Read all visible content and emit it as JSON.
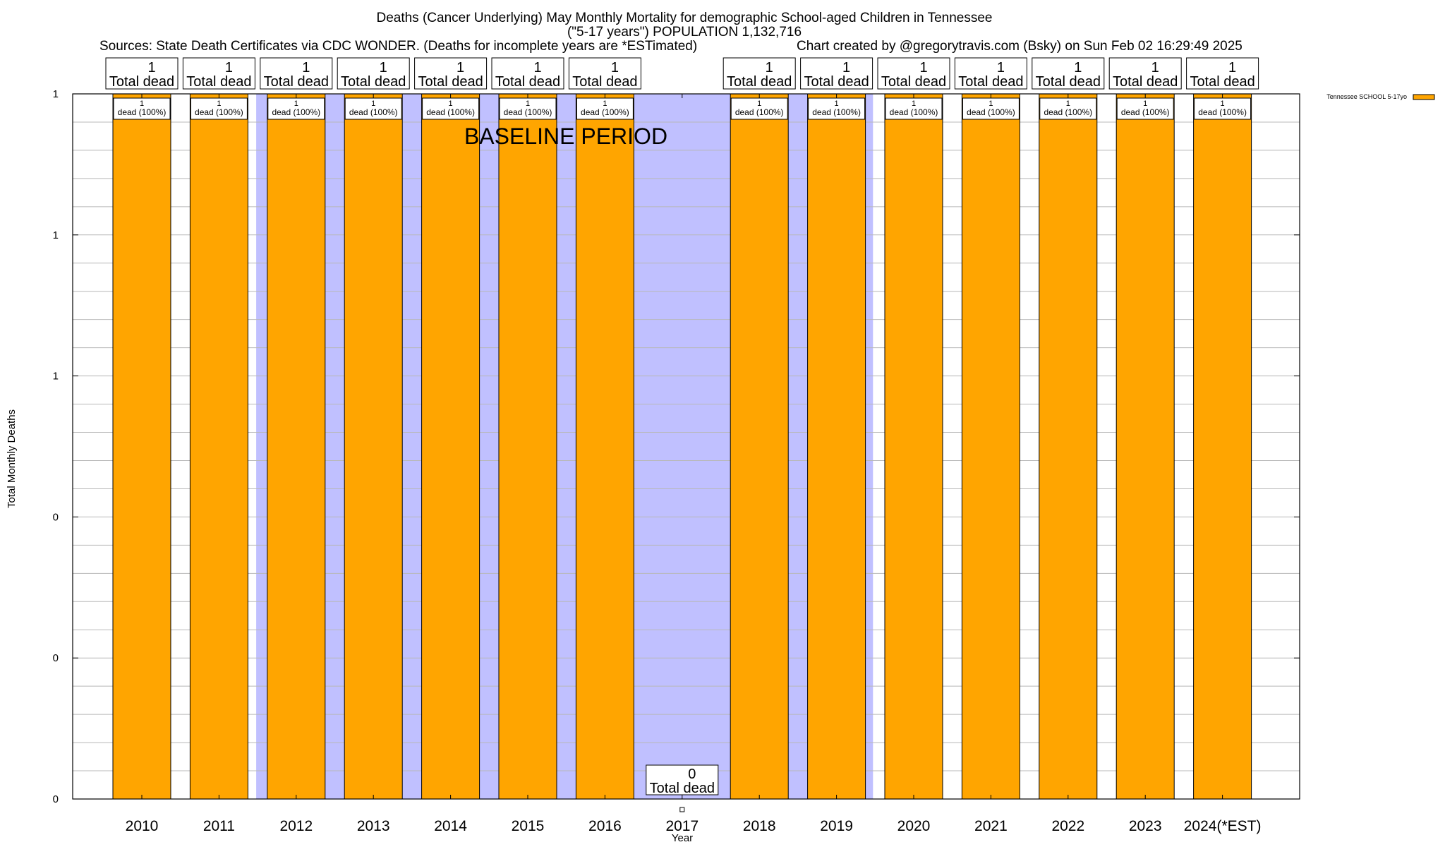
{
  "chart_data": {
    "type": "bar",
    "title_lines": [
      "Deaths (Cancer Underlying) May Monthly Mortality for demographic School-aged Children in Tennessee",
      "(\"5-17 years\") POPULATION 1,132,716"
    ],
    "sources": "Sources: State Death Certificates via CDC WONDER. (Deaths for incomplete years are *ESTimated)",
    "credit": "Chart created by @gregorytravis.com (Bsky) on Sun Feb 02 16:29:49 2025",
    "xlabel": "Year",
    "ylabel": "Total Monthly Deaths",
    "ylim": [
      0,
      1
    ],
    "ytick_values": [
      0,
      0.2,
      0.4,
      0.6,
      0.8,
      1
    ],
    "ytick_labels": [
      "0",
      "0",
      "0",
      "1",
      "1",
      "1"
    ],
    "grid": true,
    "legend_position": "top-right",
    "categories": [
      "2010",
      "2011",
      "2012",
      "2013",
      "2014",
      "2015",
      "2016",
      "2017",
      "2018",
      "2019",
      "2020",
      "2021",
      "2022",
      "2023",
      "2024(*EST)"
    ],
    "series": [
      {
        "name": "Tennessee SCHOOL 5-17yo",
        "color": "#ffa500",
        "values": [
          1,
          1,
          1,
          1,
          1,
          1,
          1,
          0,
          1,
          1,
          1,
          1,
          1,
          1,
          1
        ]
      }
    ],
    "total_labels": [
      "1",
      "1",
      "1",
      "1",
      "1",
      "1",
      "1",
      "0",
      "1",
      "1",
      "1",
      "1",
      "1",
      "1",
      "1"
    ],
    "total_suffix": "Total dead",
    "bar_labels": [
      "1",
      "1",
      "1",
      "1",
      "1",
      "1",
      "1",
      "",
      "1",
      "1",
      "1",
      "1",
      "1",
      "1",
      "1"
    ],
    "bar_label_suffix": "dead (100%)",
    "baseline_label": "BASELINE PERIOD",
    "baseline_years": [
      "2012",
      "2013",
      "2014",
      "2015",
      "2016",
      "2017",
      "2018",
      "2019"
    ],
    "baseline_color": "#c0c0ff",
    "bar_color": "#ffa500"
  }
}
